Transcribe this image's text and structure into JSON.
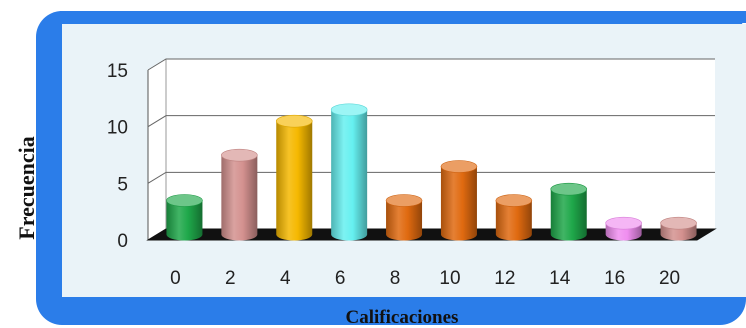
{
  "chart_data": {
    "type": "bar",
    "title": "",
    "xlabel": "Calificaciones",
    "ylabel": "Frecuencia",
    "categories": [
      "0",
      "2",
      "4",
      "6",
      "8",
      "10",
      "12",
      "14",
      "16",
      "20"
    ],
    "values": [
      3,
      7,
      10,
      11,
      3,
      6,
      3,
      4,
      1,
      1
    ],
    "ylim": [
      0,
      15
    ],
    "yticks": [
      "0",
      "5",
      "10",
      "15"
    ],
    "grid": true,
    "bar_style": "3d-cylinder",
    "bar_colors": [
      "#1fa84a",
      "#d4918f",
      "#f5b800",
      "#66f0f0",
      "#e06a10",
      "#e06a10",
      "#e06a10",
      "#1fa84a",
      "#f08ef0",
      "#d4918f"
    ],
    "frame_color": "#2b7de9",
    "plot_background": "#ffffff"
  }
}
